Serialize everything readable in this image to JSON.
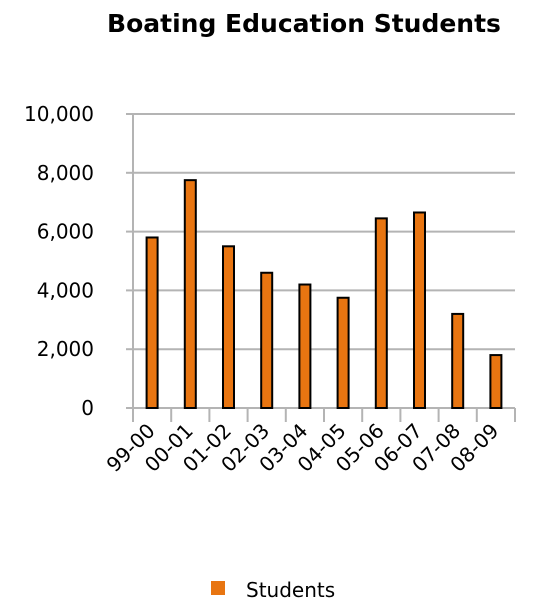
{
  "chart_data": {
    "type": "bar",
    "title": "Boating Education Students",
    "xlabel": "",
    "ylabel": "",
    "categories": [
      "99-00",
      "00-01",
      "01-02",
      "02-03",
      "03-04",
      "04-05",
      "05-06",
      "06-07",
      "07-08",
      "08-09"
    ],
    "series": [
      {
        "name": "Students",
        "color": "#E87511",
        "values": [
          5800,
          7750,
          5500,
          4600,
          4200,
          3750,
          6450,
          6650,
          3200,
          1800
        ]
      }
    ],
    "ylim": [
      0,
      10000
    ],
    "yticks": [
      0,
      2000,
      4000,
      6000,
      8000,
      10000
    ],
    "ytick_labels": [
      "0",
      "2,000",
      "4,000",
      "6,000",
      "8,000",
      "10,000"
    ],
    "grid": "horizontal",
    "grid_color": "#B4B4B4",
    "legend_position": "bottom"
  }
}
